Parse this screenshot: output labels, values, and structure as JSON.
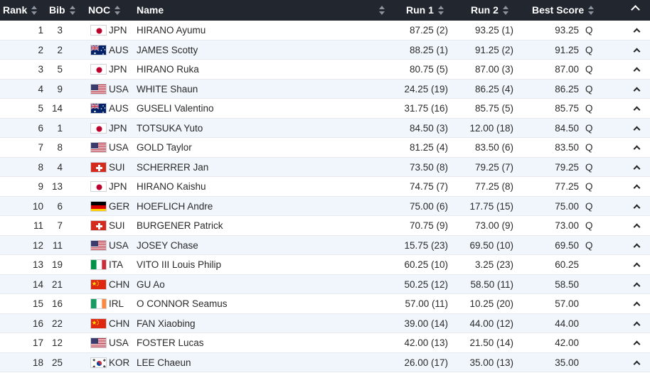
{
  "header": {
    "rank": "Rank",
    "bib": "Bib",
    "noc": "NOC",
    "name": "Name",
    "run1": "Run 1",
    "run2": "Run 2",
    "best": "Best Score"
  },
  "rows": [
    {
      "rank": "1",
      "bib": "3",
      "noc": "JPN",
      "name": "HIRANO Ayumu",
      "run1": "87.25 (2)",
      "run2": "93.25 (1)",
      "best": "93.25",
      "q": "Q"
    },
    {
      "rank": "2",
      "bib": "2",
      "noc": "AUS",
      "name": "JAMES Scotty",
      "run1": "88.25 (1)",
      "run2": "91.25 (2)",
      "best": "91.25",
      "q": "Q"
    },
    {
      "rank": "3",
      "bib": "5",
      "noc": "JPN",
      "name": "HIRANO Ruka",
      "run1": "80.75 (5)",
      "run2": "87.00 (3)",
      "best": "87.00",
      "q": "Q"
    },
    {
      "rank": "4",
      "bib": "9",
      "noc": "USA",
      "name": "WHITE Shaun",
      "run1": "24.25 (19)",
      "run2": "86.25 (4)",
      "best": "86.25",
      "q": "Q"
    },
    {
      "rank": "5",
      "bib": "14",
      "noc": "AUS",
      "name": "GUSELI Valentino",
      "run1": "31.75 (16)",
      "run2": "85.75 (5)",
      "best": "85.75",
      "q": "Q"
    },
    {
      "rank": "6",
      "bib": "1",
      "noc": "JPN",
      "name": "TOTSUKA Yuto",
      "run1": "84.50 (3)",
      "run2": "12.00 (18)",
      "best": "84.50",
      "q": "Q"
    },
    {
      "rank": "7",
      "bib": "8",
      "noc": "USA",
      "name": "GOLD Taylor",
      "run1": "81.25 (4)",
      "run2": "83.50 (6)",
      "best": "83.50",
      "q": "Q"
    },
    {
      "rank": "8",
      "bib": "4",
      "noc": "SUI",
      "name": "SCHERRER Jan",
      "run1": "73.50 (8)",
      "run2": "79.25 (7)",
      "best": "79.25",
      "q": "Q"
    },
    {
      "rank": "9",
      "bib": "13",
      "noc": "JPN",
      "name": "HIRANO Kaishu",
      "run1": "74.75 (7)",
      "run2": "77.25 (8)",
      "best": "77.25",
      "q": "Q"
    },
    {
      "rank": "10",
      "bib": "6",
      "noc": "GER",
      "name": "HOEFLICH Andre",
      "run1": "75.00 (6)",
      "run2": "17.75 (15)",
      "best": "75.00",
      "q": "Q"
    },
    {
      "rank": "11",
      "bib": "7",
      "noc": "SUI",
      "name": "BURGENER Patrick",
      "run1": "70.75 (9)",
      "run2": "73.00 (9)",
      "best": "73.00",
      "q": "Q"
    },
    {
      "rank": "12",
      "bib": "11",
      "noc": "USA",
      "name": "JOSEY Chase",
      "run1": "15.75 (23)",
      "run2": "69.50 (10)",
      "best": "69.50",
      "q": "Q"
    },
    {
      "rank": "13",
      "bib": "19",
      "noc": "ITA",
      "name": "VITO III Louis Philip",
      "run1": "60.25 (10)",
      "run2": "3.25 (23)",
      "best": "60.25",
      "q": ""
    },
    {
      "rank": "14",
      "bib": "21",
      "noc": "CHN",
      "name": "GU Ao",
      "run1": "50.25 (12)",
      "run2": "58.50 (11)",
      "best": "58.50",
      "q": ""
    },
    {
      "rank": "15",
      "bib": "16",
      "noc": "IRL",
      "name": "O CONNOR Seamus",
      "run1": "57.00 (11)",
      "run2": "10.25 (20)",
      "best": "57.00",
      "q": ""
    },
    {
      "rank": "16",
      "bib": "22",
      "noc": "CHN",
      "name": "FAN Xiaobing",
      "run1": "39.00 (14)",
      "run2": "44.00 (12)",
      "best": "44.00",
      "q": ""
    },
    {
      "rank": "17",
      "bib": "12",
      "noc": "USA",
      "name": "FOSTER Lucas",
      "run1": "42.00 (13)",
      "run2": "21.50 (14)",
      "best": "42.00",
      "q": ""
    },
    {
      "rank": "18",
      "bib": "25",
      "noc": "KOR",
      "name": "LEE Chaeun",
      "run1": "26.00 (17)",
      "run2": "35.00 (13)",
      "best": "35.00",
      "q": ""
    }
  ],
  "colors": {
    "header_bg": "#21262f",
    "alt_row": "#f0f6fc",
    "border": "#e6e9ee"
  }
}
